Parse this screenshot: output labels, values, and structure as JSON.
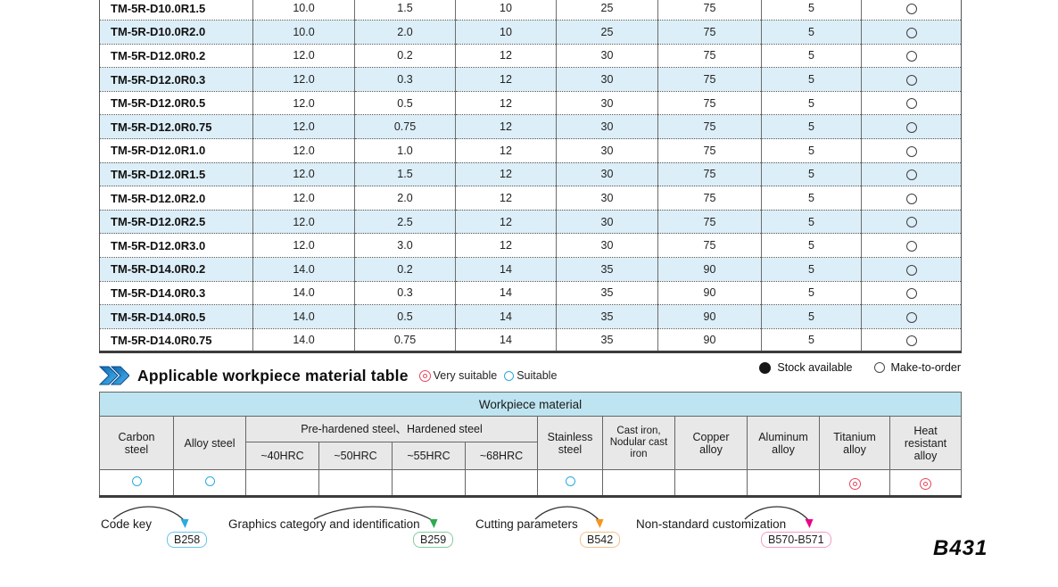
{
  "spec_table": {
    "rows": [
      {
        "model": "TM-5R-D10.0R1.5",
        "values": [
          "10.0",
          "1.5",
          "10",
          "25",
          "75",
          "5"
        ],
        "stock": "make-to-order"
      },
      {
        "model": "TM-5R-D10.0R2.0",
        "values": [
          "10.0",
          "2.0",
          "10",
          "25",
          "75",
          "5"
        ],
        "stock": "make-to-order"
      },
      {
        "model": "TM-5R-D12.0R0.2",
        "values": [
          "12.0",
          "0.2",
          "12",
          "30",
          "75",
          "5"
        ],
        "stock": "make-to-order"
      },
      {
        "model": "TM-5R-D12.0R0.3",
        "values": [
          "12.0",
          "0.3",
          "12",
          "30",
          "75",
          "5"
        ],
        "stock": "make-to-order"
      },
      {
        "model": "TM-5R-D12.0R0.5",
        "values": [
          "12.0",
          "0.5",
          "12",
          "30",
          "75",
          "5"
        ],
        "stock": "make-to-order"
      },
      {
        "model": "TM-5R-D12.0R0.75",
        "values": [
          "12.0",
          "0.75",
          "12",
          "30",
          "75",
          "5"
        ],
        "stock": "make-to-order"
      },
      {
        "model": "TM-5R-D12.0R1.0",
        "values": [
          "12.0",
          "1.0",
          "12",
          "30",
          "75",
          "5"
        ],
        "stock": "make-to-order"
      },
      {
        "model": "TM-5R-D12.0R1.5",
        "values": [
          "12.0",
          "1.5",
          "12",
          "30",
          "75",
          "5"
        ],
        "stock": "make-to-order"
      },
      {
        "model": "TM-5R-D12.0R2.0",
        "values": [
          "12.0",
          "2.0",
          "12",
          "30",
          "75",
          "5"
        ],
        "stock": "make-to-order"
      },
      {
        "model": "TM-5R-D12.0R2.5",
        "values": [
          "12.0",
          "2.5",
          "12",
          "30",
          "75",
          "5"
        ],
        "stock": "make-to-order"
      },
      {
        "model": "TM-5R-D12.0R3.0",
        "values": [
          "12.0",
          "3.0",
          "12",
          "30",
          "75",
          "5"
        ],
        "stock": "make-to-order"
      },
      {
        "model": "TM-5R-D14.0R0.2",
        "values": [
          "14.0",
          "0.2",
          "14",
          "35",
          "90",
          "5"
        ],
        "stock": "make-to-order"
      },
      {
        "model": "TM-5R-D14.0R0.3",
        "values": [
          "14.0",
          "0.3",
          "14",
          "35",
          "90",
          "5"
        ],
        "stock": "make-to-order"
      },
      {
        "model": "TM-5R-D14.0R0.5",
        "values": [
          "14.0",
          "0.5",
          "14",
          "35",
          "90",
          "5"
        ],
        "stock": "make-to-order"
      },
      {
        "model": "TM-5R-D14.0R0.75",
        "values": [
          "14.0",
          "0.75",
          "14",
          "35",
          "90",
          "5"
        ],
        "stock": "make-to-order"
      }
    ]
  },
  "section": {
    "title": "Applicable workpiece material table"
  },
  "legend": {
    "very_suitable": "Very suitable",
    "suitable": "Suitable",
    "stock_available": "Stock available",
    "make_to_order": "Make-to-order"
  },
  "material_table": {
    "title": "Workpiece material",
    "group_header": "Pre-hardened steel、Hardened steel",
    "headers": {
      "carbon": "Carbon steel",
      "alloy": "Alloy steel",
      "hrc40": "~40HRC",
      "hrc50": "~50HRC",
      "hrc55": "~55HRC",
      "hrc68": "~68HRC",
      "stainless": "Stainless steel",
      "cast_iron": "Cast iron, Nodular cast iron",
      "copper": "Copper alloy",
      "aluminum": "Aluminum alloy",
      "titanium": "Titanium alloy",
      "heat_resistant": "Heat resistant alloy"
    },
    "suitability": [
      "suitable",
      "suitable",
      "",
      "",
      "",
      "",
      "suitable",
      "",
      "",
      "",
      "very_suitable",
      "very_suitable"
    ]
  },
  "footer": {
    "links": [
      {
        "label": "Code key",
        "badge": "B258",
        "badge_color": "#66c5ec",
        "arrow_color": "#29abe2"
      },
      {
        "label": "Graphics category and identification",
        "badge": "B259",
        "badge_color": "#82cc9c",
        "arrow_color": "#2eab4f"
      },
      {
        "label": "Cutting parameters",
        "badge": "B542",
        "badge_color": "#f6bf88",
        "arrow_color": "#f7941d"
      },
      {
        "label": "Non-standard customization",
        "badge": "B570-B571",
        "badge_color": "#f49ac4",
        "arrow_color": "#ec008c"
      }
    ],
    "page_number": "B431"
  },
  "colors": {
    "row_stripe": "#dceef8",
    "table_header_cyan": "#bde4f0",
    "table_header_gray": "#e8e8e8",
    "suitable_blue": "#29abe2",
    "very_suitable_red": "#e8455a"
  }
}
